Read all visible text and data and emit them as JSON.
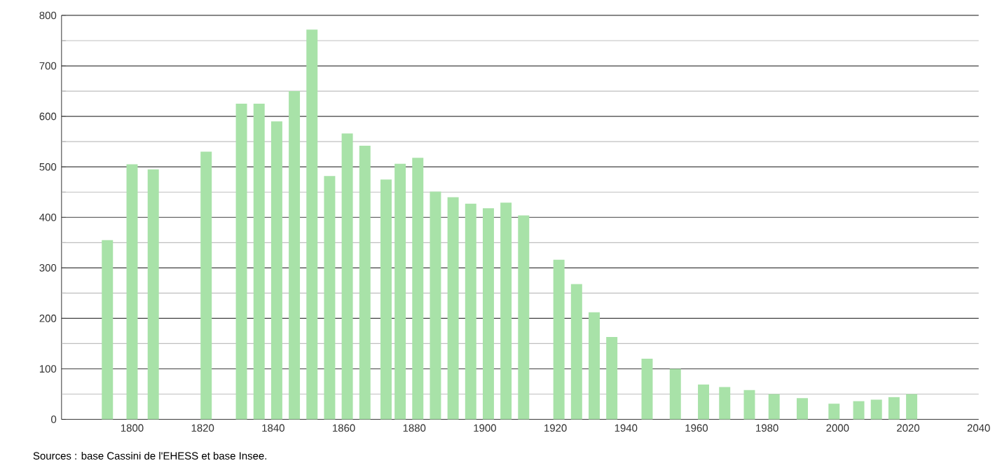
{
  "chart_data": {
    "type": "bar",
    "x": [
      1793,
      1800,
      1806,
      1821,
      1831,
      1836,
      1841,
      1846,
      1851,
      1856,
      1861,
      1866,
      1872,
      1876,
      1881,
      1886,
      1891,
      1896,
      1901,
      1906,
      1911,
      1921,
      1926,
      1931,
      1936,
      1946,
      1954,
      1962,
      1968,
      1975,
      1982,
      1990,
      1999,
      2006,
      2011,
      2016,
      2021
    ],
    "values": [
      355,
      505,
      495,
      530,
      625,
      625,
      590,
      650,
      772,
      482,
      566,
      542,
      475,
      506,
      518,
      451,
      440,
      427,
      418,
      429,
      404,
      316,
      268,
      212,
      163,
      120,
      100,
      69,
      64,
      58,
      50,
      42,
      31,
      36,
      39,
      44,
      50
    ],
    "color": "#a8e2a8",
    "xlim": [
      1780,
      2040
    ],
    "xticks": [
      1800,
      1820,
      1840,
      1860,
      1880,
      1900,
      1920,
      1940,
      1960,
      1980,
      2000,
      2020,
      2040
    ],
    "ylim": [
      0,
      800
    ],
    "yticks": [
      0,
      {
        "value": 50,
        "label": null
      },
      100,
      {
        "value": 150,
        "label": null
      },
      200,
      {
        "value": 250,
        "label": null
      },
      300,
      {
        "value": 350,
        "label": null
      },
      400,
      {
        "value": 450,
        "label": null
      },
      500,
      {
        "value": 550,
        "label": null
      },
      600,
      {
        "value": 650,
        "label": null
      },
      700,
      {
        "value": 750,
        "label": null
      },
      800
    ],
    "grid": "y",
    "annotations": [
      "Sources : base Cassini de l'EHESS et base Insee."
    ]
  }
}
